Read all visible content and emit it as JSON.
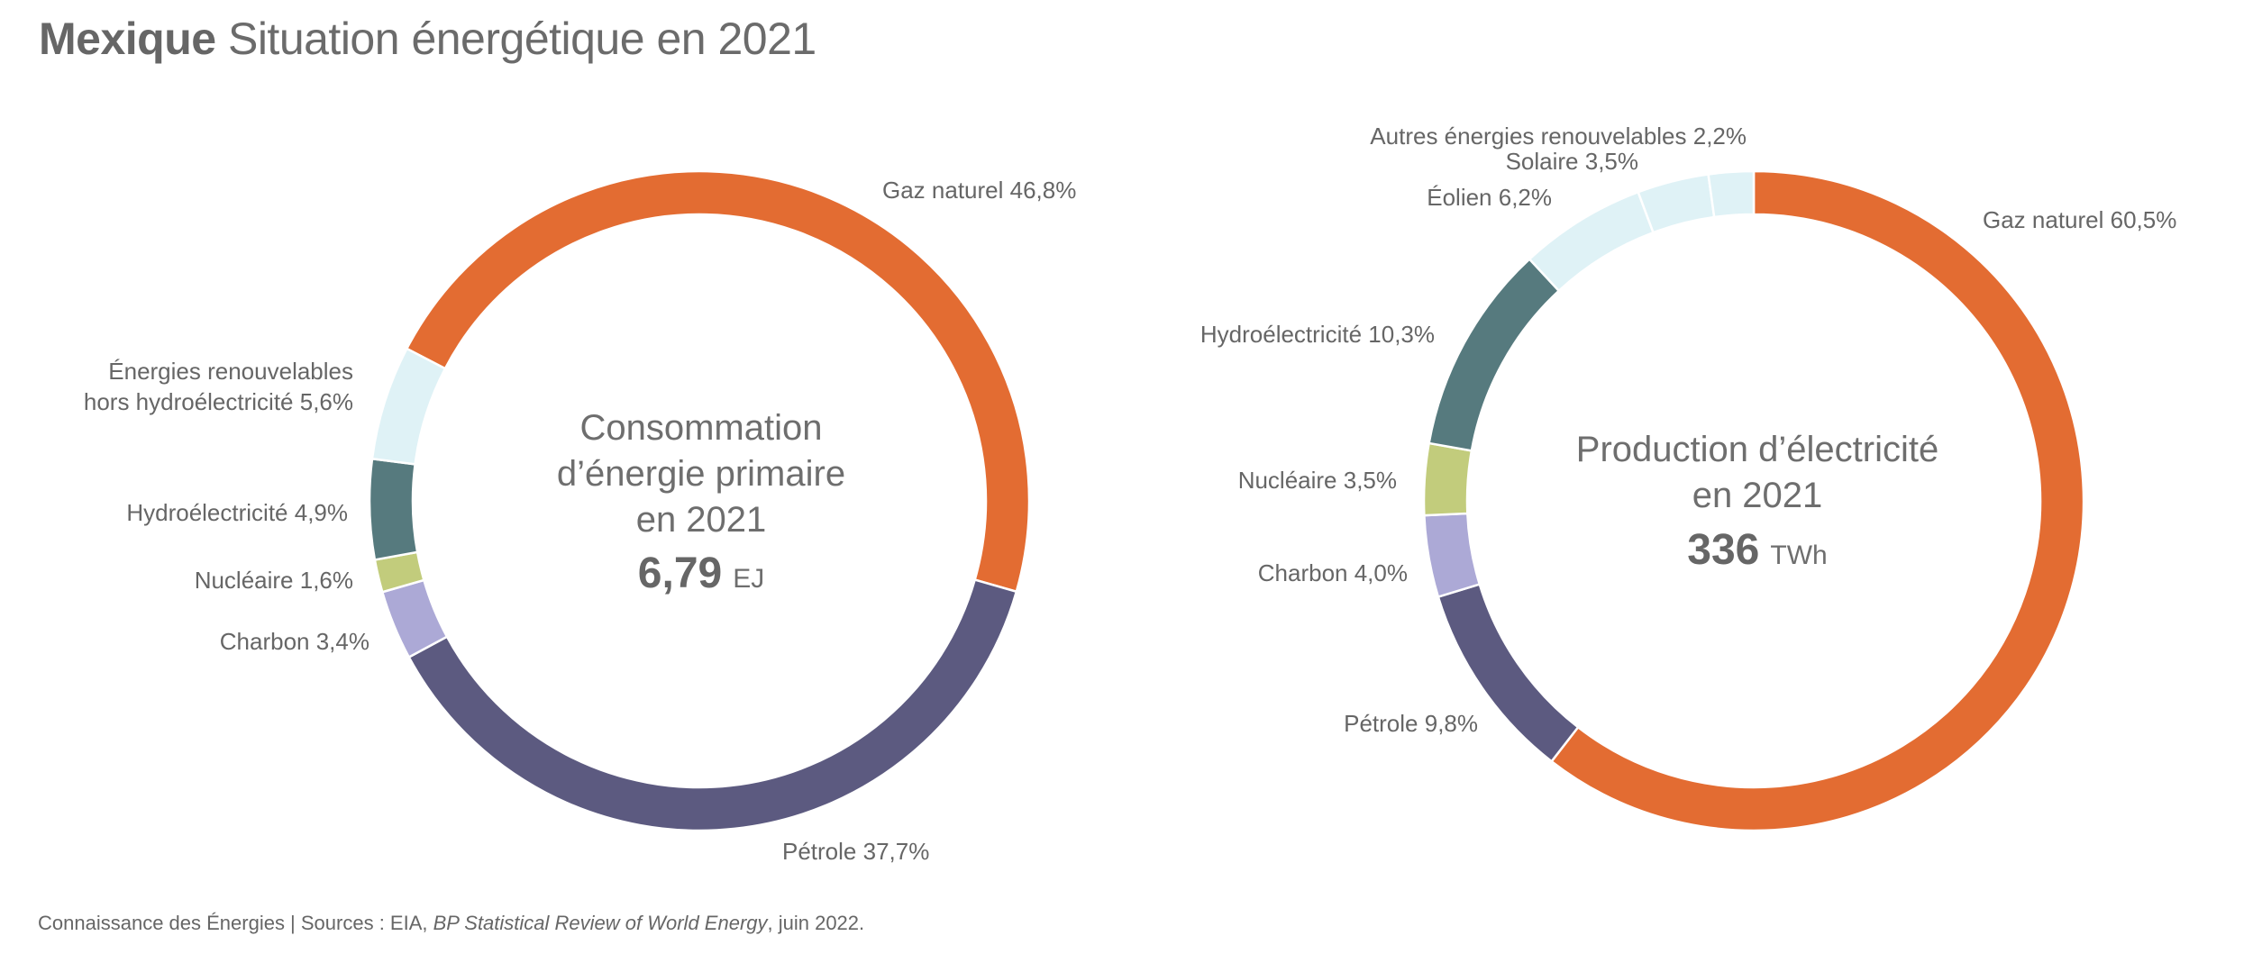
{
  "title": {
    "bold": "Mexique",
    "rest": "Situation énergétique en 2021"
  },
  "footer": {
    "prefix": "Connaissance des Énergies | Sources : EIA, ",
    "italic": "BP Statistical Review of World Energy",
    "suffix": ", juin 2022."
  },
  "chart_data": [
    {
      "type": "pie",
      "variant": "donut",
      "title": "Consommation d’énergie primaire en 2021",
      "center_lines": [
        "Consommation",
        "d’énergie primaire",
        "en 2021"
      ],
      "total_value": "6,79",
      "total_unit": "EJ",
      "unit": "%",
      "slices": [
        {
          "name": "Gaz naturel",
          "value": 46.8,
          "label": "Gaz naturel 46,8%",
          "color": "#e36c32"
        },
        {
          "name": "Pétrole",
          "value": 37.7,
          "label": "Pétrole 37,7%",
          "color": "#5c5a80"
        },
        {
          "name": "Charbon",
          "value": 3.4,
          "label": "Charbon 3,4%",
          "color": "#aca9d6"
        },
        {
          "name": "Nucléaire",
          "value": 1.6,
          "label": "Nucléaire 1,6%",
          "color": "#c2cc7c"
        },
        {
          "name": "Hydroélectricité",
          "value": 4.9,
          "label": "Hydroélectricité 4,9%",
          "color": "#567a7e"
        },
        {
          "name": "Énergies renouvelables hors hydroélectricité",
          "value": 5.6,
          "label_lines": [
            "Énergies renouvelables",
            "hors hydroélectricité 5,6%"
          ],
          "color": "#dff2f6"
        }
      ]
    },
    {
      "type": "pie",
      "variant": "donut",
      "title": "Production d’électricité en 2021",
      "center_lines": [
        "Production d’électricité",
        "en 2021"
      ],
      "total_value": "336",
      "total_unit": "TWh",
      "unit": "%",
      "slices": [
        {
          "name": "Gaz naturel",
          "value": 60.5,
          "label": "Gaz naturel 60,5%",
          "color": "#e36c32"
        },
        {
          "name": "Pétrole",
          "value": 9.8,
          "label": "Pétrole 9,8%",
          "color": "#5c5a80"
        },
        {
          "name": "Charbon",
          "value": 4.0,
          "label": "Charbon 4,0%",
          "color": "#aca9d6"
        },
        {
          "name": "Nucléaire",
          "value": 3.5,
          "label": "Nucléaire 3,5%",
          "color": "#c2cc7c"
        },
        {
          "name": "Hydroélectricité",
          "value": 10.3,
          "label": "Hydroélectricité 10,3%",
          "color": "#567a7e"
        },
        {
          "name": "Éolien",
          "value": 6.2,
          "label": "Éolien 6,2%",
          "color": "#dff2f6"
        },
        {
          "name": "Solaire",
          "value": 3.5,
          "label": "Solaire 3,5%",
          "color": "#dff2f6"
        },
        {
          "name": "Autres énergies renouvelables",
          "value": 2.2,
          "label": "Autres énergies renouvelables 2,2%",
          "color": "#dff2f6"
        }
      ]
    }
  ]
}
